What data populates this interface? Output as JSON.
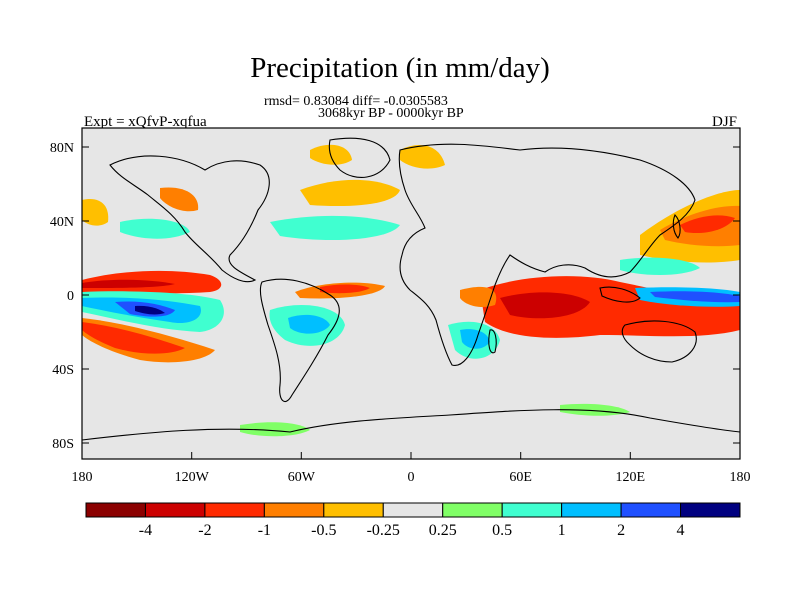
{
  "title": "Precipitation (in mm/day)",
  "stats": "rmsd= 0.83084 diff= -0.0305583",
  "period": "3068kyr BP - 0000kyr BP",
  "experiment": "Expt = xQfvP-xqfua",
  "season": "DJF",
  "lat_ticks": [
    "80N",
    "40N",
    "0",
    "40S",
    "80S"
  ],
  "lon_ticks": [
    "180",
    "120W",
    "60W",
    "0",
    "60E",
    "120E",
    "180"
  ],
  "colorbar": {
    "colors": [
      "#8b0000",
      "#cc0000",
      "#ff2a00",
      "#ff7f00",
      "#ffbf00",
      "#e6e6e6",
      "#80ff66",
      "#40ffd0",
      "#00bfff",
      "#1f50ff",
      "#000080"
    ],
    "labels": [
      "-4",
      "-2",
      "-1",
      "-0.5",
      "-0.25",
      "0.25",
      "0.5",
      "1",
      "2",
      "4"
    ]
  },
  "ocean_color": "#e6e6e6"
}
